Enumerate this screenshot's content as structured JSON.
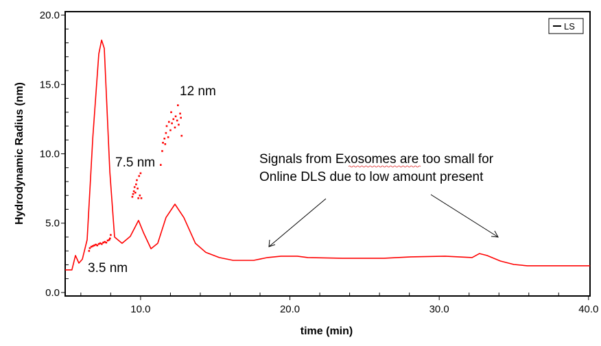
{
  "chart_data": {
    "type": "line",
    "xlabel": "time (min)",
    "ylabel": "Hydrodynamic Radius (nm)",
    "xlim": [
      4.95,
      40.1
    ],
    "ylim": [
      -0.25,
      20.25
    ],
    "x_ticks": [
      "10.0",
      "20.0",
      "30.0",
      "40.0"
    ],
    "x_tick_values": [
      10,
      20,
      30,
      40
    ],
    "y_ticks": [
      "0.0",
      "5.0",
      "10.0",
      "15.0",
      "20.0"
    ],
    "y_tick_values": [
      0,
      5,
      10,
      15,
      20
    ],
    "grid": false,
    "legend": {
      "placement": "top-right",
      "entries": [
        "LS"
      ]
    },
    "colors": {
      "series": "#ff0000",
      "axis": "#000000"
    },
    "series": [
      {
        "name": "LS",
        "kind": "line",
        "points": [
          [
            4.95,
            1.63
          ],
          [
            5.4,
            1.63
          ],
          [
            5.64,
            2.67
          ],
          [
            5.87,
            2.12
          ],
          [
            6.1,
            2.4
          ],
          [
            6.42,
            3.8
          ],
          [
            6.8,
            11.2
          ],
          [
            7.2,
            17.2
          ],
          [
            7.39,
            18.2
          ],
          [
            7.57,
            17.6
          ],
          [
            7.94,
            8.7
          ],
          [
            8.26,
            4.0
          ],
          [
            8.76,
            3.55
          ],
          [
            9.31,
            4.05
          ],
          [
            9.86,
            5.2
          ],
          [
            10.2,
            4.3
          ],
          [
            10.7,
            3.16
          ],
          [
            11.15,
            3.55
          ],
          [
            11.7,
            5.4
          ],
          [
            12.3,
            6.37
          ],
          [
            12.9,
            5.4
          ],
          [
            13.67,
            3.55
          ],
          [
            14.36,
            2.9
          ],
          [
            15.27,
            2.52
          ],
          [
            16.2,
            2.32
          ],
          [
            17.57,
            2.32
          ],
          [
            18.5,
            2.52
          ],
          [
            19.4,
            2.62
          ],
          [
            20.5,
            2.62
          ],
          [
            21.2,
            2.52
          ],
          [
            23.5,
            2.47
          ],
          [
            26.3,
            2.47
          ],
          [
            28.1,
            2.57
          ],
          [
            30.4,
            2.62
          ],
          [
            32.2,
            2.52
          ],
          [
            32.7,
            2.81
          ],
          [
            33.2,
            2.67
          ],
          [
            34.1,
            2.27
          ],
          [
            35.0,
            2.02
          ],
          [
            35.9,
            1.93
          ],
          [
            40.1,
            1.93
          ]
        ]
      },
      {
        "kind": "scatter",
        "points": [
          [
            6.55,
            3.0
          ],
          [
            6.6,
            3.2
          ],
          [
            6.7,
            3.3
          ],
          [
            6.8,
            3.35
          ],
          [
            6.9,
            3.4
          ],
          [
            7.0,
            3.45
          ],
          [
            7.1,
            3.4
          ],
          [
            7.2,
            3.5
          ],
          [
            7.3,
            3.55
          ],
          [
            7.4,
            3.5
          ],
          [
            7.5,
            3.6
          ],
          [
            7.6,
            3.65
          ],
          [
            7.7,
            3.6
          ],
          [
            7.8,
            3.75
          ],
          [
            7.9,
            3.8
          ],
          [
            7.95,
            3.9
          ],
          [
            8.0,
            4.15
          ],
          [
            9.45,
            6.9
          ],
          [
            9.5,
            7.1
          ],
          [
            9.55,
            7.3
          ],
          [
            9.6,
            7.6
          ],
          [
            9.65,
            7.2
          ],
          [
            9.7,
            7.8
          ],
          [
            9.75,
            8.1
          ],
          [
            9.8,
            7.5
          ],
          [
            9.85,
            6.8
          ],
          [
            9.9,
            8.4
          ],
          [
            9.95,
            7.0
          ],
          [
            10.0,
            8.6
          ],
          [
            10.05,
            6.8
          ],
          [
            11.35,
            9.2
          ],
          [
            11.45,
            10.2
          ],
          [
            11.5,
            10.8
          ],
          [
            11.6,
            11.1
          ],
          [
            11.65,
            10.7
          ],
          [
            11.7,
            11.5
          ],
          [
            11.75,
            12.0
          ],
          [
            11.85,
            11.2
          ],
          [
            11.9,
            12.3
          ],
          [
            12.0,
            11.7
          ],
          [
            12.05,
            13.0
          ],
          [
            12.1,
            12.2
          ],
          [
            12.2,
            12.5
          ],
          [
            12.3,
            11.9
          ],
          [
            12.35,
            12.7
          ],
          [
            12.45,
            12.4
          ],
          [
            12.5,
            13.5
          ],
          [
            12.55,
            12.1
          ],
          [
            12.65,
            12.9
          ],
          [
            12.7,
            12.6
          ],
          [
            12.75,
            11.3
          ]
        ]
      }
    ],
    "annotations": [
      {
        "text": "12 nm"
      },
      {
        "text": "7.5 nm"
      },
      {
        "text": "3.5 nm"
      },
      {
        "lines": [
          "Signals from Exosomes are too small for",
          "Online DLS due to low amount present"
        ],
        "arrows": 2
      }
    ]
  }
}
